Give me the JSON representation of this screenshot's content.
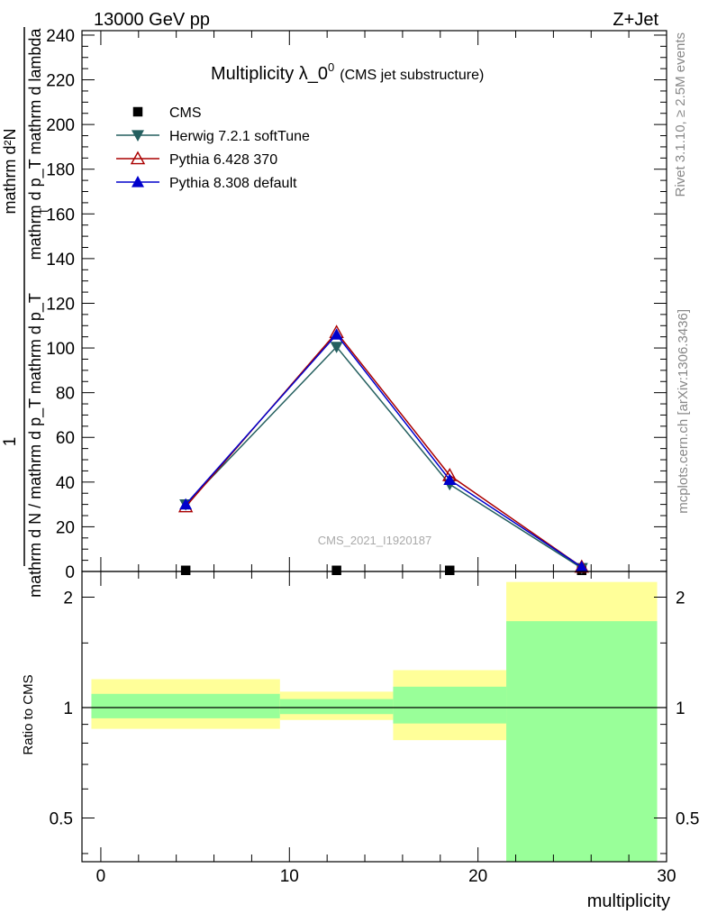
{
  "header": {
    "left": "13000 GeV pp",
    "right": "Z+Jet"
  },
  "side_labels": {
    "top": "Rivet 3.1.10, ≥ 2.5M events",
    "bottom": "mcplots.cern.ch [arXiv:1306.3436]"
  },
  "chart_data": [
    {
      "panel": "main",
      "type": "line",
      "title": "Multiplicity λ_0",
      "title_superscript": "0",
      "subtitle": "(CMS jet substructure)",
      "ylabel_numerator_line1": "mathrm d²N",
      "ylabel_numerator_line2": "mathrm d p_T mathrm d lambda",
      "ylabel_numerator_subscript": "T",
      "ylabel_prefix_numerator": "1",
      "ylabel_denominator": "mathrm d N / mathrm d p_T mathrm d p_T",
      "xlim": [
        -1,
        30
      ],
      "ylim": [
        0,
        242
      ],
      "y_ticks": [
        0,
        20,
        40,
        60,
        80,
        100,
        120,
        140,
        160,
        180,
        200,
        220,
        240
      ],
      "watermark": "CMS_2021_I1920187",
      "legend_position": "top-left",
      "series": [
        {
          "name": "CMS",
          "color": "#000000",
          "marker": "square",
          "x": [
            4.5,
            12.5,
            18.5,
            25.5
          ],
          "y": [
            0.5,
            0.5,
            0.5,
            0.5
          ]
        },
        {
          "name": "Herwig 7.2.1 softTune",
          "color": "#245f5f",
          "marker": "triangle-down",
          "x": [
            4.5,
            12.5,
            18.5,
            25.5
          ],
          "y": [
            30,
            100.5,
            39,
            1.5
          ]
        },
        {
          "name": "Pythia 6.428 370",
          "color": "#aa0000",
          "marker": "triangle-up-open",
          "x": [
            4.5,
            12.5,
            18.5,
            25.5
          ],
          "y": [
            29,
            107,
            43,
            2
          ]
        },
        {
          "name": "Pythia 8.308 default",
          "color": "#0000cc",
          "marker": "triangle-up",
          "x": [
            4.5,
            12.5,
            18.5,
            25.5
          ],
          "y": [
            30,
            106,
            41,
            2
          ]
        }
      ]
    },
    {
      "panel": "ratio",
      "type": "area",
      "ylabel": "Ratio to CMS",
      "xlabel": "multiplicity",
      "log_y": true,
      "xlim": [
        -1,
        30
      ],
      "ylim": [
        0.38,
        2.35
      ],
      "y_ticks": [
        0.5,
        1,
        2
      ],
      "x_ticks": [
        0,
        10,
        20,
        30
      ],
      "reference_line": 1,
      "bands": [
        {
          "x": [
            -0.5,
            9.5
          ],
          "outer": [
            0.875,
            1.195
          ],
          "inner": [
            0.935,
            1.09
          ]
        },
        {
          "x": [
            9.5,
            15.5
          ],
          "outer": [
            0.925,
            1.105
          ],
          "inner": [
            0.96,
            1.055
          ]
        },
        {
          "x": [
            15.5,
            21.5
          ],
          "outer": [
            0.815,
            1.265
          ],
          "inner": [
            0.905,
            1.14
          ]
        },
        {
          "x": [
            21.5,
            29.5
          ],
          "outer": [
            0.38,
            2.2
          ],
          "inner": [
            0.38,
            1.72
          ]
        }
      ],
      "band_colors": {
        "outer": "#ffff99",
        "inner": "#99ff99"
      }
    }
  ]
}
